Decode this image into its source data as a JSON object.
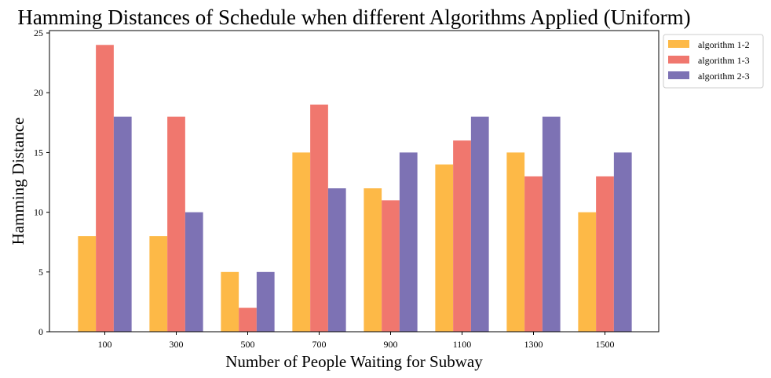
{
  "chart_data": {
    "type": "bar",
    "title": "Hamming Distances of Schedule when different Algorithms Applied (Uniform)",
    "xlabel": "Number of People Waiting for Subway",
    "ylabel": "Hamming Distance",
    "categories": [
      "100",
      "300",
      "500",
      "700",
      "900",
      "1100",
      "1300",
      "1500"
    ],
    "ylim": [
      0,
      25.2
    ],
    "yticks": [
      0,
      5,
      10,
      15,
      20,
      25
    ],
    "grid": false,
    "legend_position": "outside-top-right",
    "series": [
      {
        "name": "algorithm 1-2",
        "color": "#FDB947",
        "values": [
          8,
          8,
          5,
          15,
          12,
          14,
          15,
          10
        ]
      },
      {
        "name": "algorithm 1-3",
        "color": "#F0776E",
        "values": [
          24,
          18,
          2,
          19,
          11,
          16,
          13,
          13
        ]
      },
      {
        "name": "algorithm 2-3",
        "color": "#7D72B4",
        "values": [
          18,
          10,
          5,
          12,
          15,
          18,
          18,
          15
        ]
      }
    ]
  }
}
